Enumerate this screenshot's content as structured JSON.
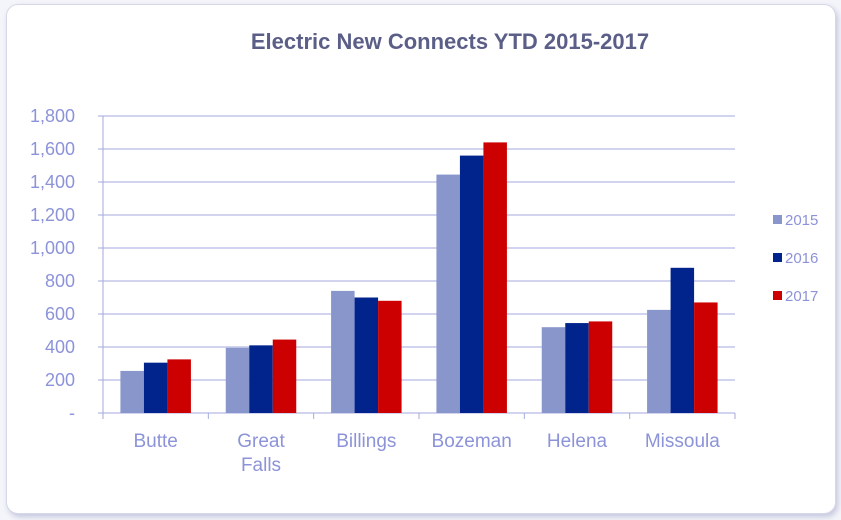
{
  "chart_data": {
    "type": "bar",
    "title": "Electric New Connects YTD 2015-2017",
    "xlabel": "",
    "ylabel": "",
    "ylim": [
      0,
      1800
    ],
    "y_ticks": [
      0,
      200,
      400,
      600,
      800,
      1000,
      1200,
      1400,
      1600,
      1800
    ],
    "y_tick_labels": [
      "-",
      "200",
      "400",
      "600",
      "800",
      "1,000",
      "1,200",
      "1,400",
      "1,600",
      "1,800"
    ],
    "categories": [
      "Butte",
      "Great Falls",
      "Billings",
      "Bozeman",
      "Helena",
      "Missoula"
    ],
    "series": [
      {
        "name": "2015",
        "color": "#8896cc",
        "values": [
          255,
          395,
          740,
          1445,
          520,
          625
        ]
      },
      {
        "name": "2016",
        "color": "#00238c",
        "values": [
          305,
          410,
          700,
          1560,
          545,
          880
        ]
      },
      {
        "name": "2017",
        "color": "#cc0000",
        "values": [
          325,
          445,
          680,
          1640,
          555,
          670
        ]
      }
    ],
    "grid": true,
    "legend_position": "right"
  }
}
